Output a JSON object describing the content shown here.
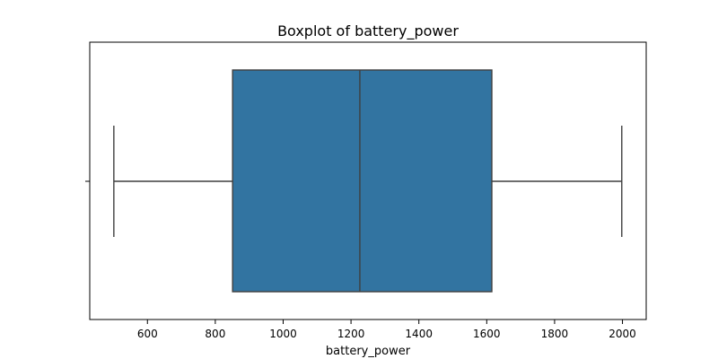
{
  "chart_data": {
    "type": "box",
    "title": "Boxplot of battery_power",
    "xlabel": "battery_power",
    "ylabel": "",
    "xlim": [
      430,
      2070
    ],
    "xticks": [
      600,
      800,
      1000,
      1200,
      1400,
      1600,
      1800,
      2000
    ],
    "grid": false,
    "orientation": "horizontal",
    "series": [
      {
        "min": 501,
        "q1": 851,
        "median": 1226,
        "q3": 1615,
        "max": 1998
      }
    ],
    "colors": {
      "box_fill": "#3274a1",
      "line": "#3f3f3f",
      "axis": "#000000"
    }
  }
}
